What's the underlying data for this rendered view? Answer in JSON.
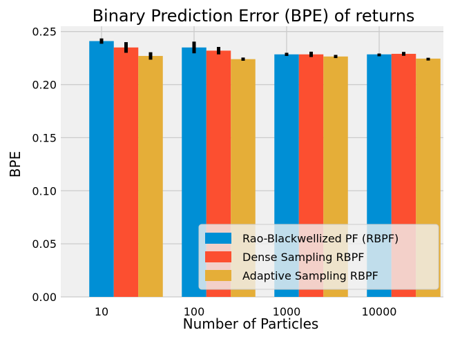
{
  "chart_data": {
    "type": "bar",
    "title": "Binary Prediction Error (BPE) of returns",
    "xlabel": "Number of Particles",
    "ylabel": "BPE",
    "categories": [
      "10",
      "100",
      "1000",
      "10000"
    ],
    "series": [
      {
        "name": "Rao-Blackwellized PF (RBPF)",
        "color": "#008fd5",
        "values": [
          0.241,
          0.235,
          0.2285,
          0.2285
        ],
        "errors": [
          0.0025,
          0.0055,
          0.0015,
          0.0008
        ]
      },
      {
        "name": "Dense Sampling RBPF",
        "color": "#fc4f30",
        "values": [
          0.235,
          0.232,
          0.2285,
          0.229
        ],
        "errors": [
          0.005,
          0.0035,
          0.0025,
          0.0018
        ]
      },
      {
        "name": "Adaptive Sampling RBPF",
        "color": "#e5ae38",
        "values": [
          0.227,
          0.224,
          0.2265,
          0.2245
        ],
        "errors": [
          0.0035,
          0.0015,
          0.0015,
          0.0008
        ]
      }
    ],
    "ylim": [
      0,
      0.255
    ],
    "yticks": [
      "0.00",
      "0.05",
      "0.10",
      "0.15",
      "0.20",
      "0.25"
    ],
    "grid": true,
    "legend_position": "bottom-right",
    "background_color": "#f0f0f0",
    "grid_color": "#cbcbcb",
    "errorbar_color": "#000000"
  }
}
